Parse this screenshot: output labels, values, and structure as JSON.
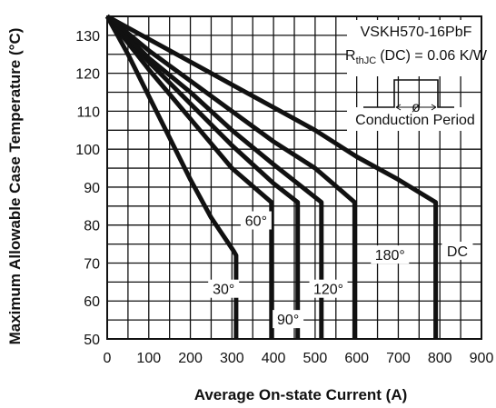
{
  "chart_data": {
    "type": "line",
    "xlabel": "Average On-state Current (A)",
    "ylabel": "Maximum Allowable Case Temperature (°C)",
    "xlim": [
      0,
      900
    ],
    "ylim": [
      50,
      135
    ],
    "x_ticks": [
      0,
      100,
      200,
      300,
      400,
      500,
      600,
      700,
      800,
      900
    ],
    "y_ticks": [
      50,
      60,
      70,
      80,
      90,
      100,
      110,
      120,
      130
    ],
    "grid": true,
    "annotations": {
      "model": "VSKH570-16PbF",
      "rth_prefix": "R",
      "rth_sub": "thJC",
      "rth_suffix": "(DC) = 0.06 K/W",
      "phi": "ø",
      "conduction": "Conduction Period"
    },
    "series": [
      {
        "name": "30°",
        "label": "30°",
        "points": [
          [
            0,
            135
          ],
          [
            50,
            125
          ],
          [
            100,
            114
          ],
          [
            150,
            103
          ],
          [
            200,
            92
          ],
          [
            250,
            82
          ],
          [
            305,
            73
          ],
          [
            310,
            72
          ],
          [
            310,
            50
          ]
        ]
      },
      {
        "name": "60°",
        "label": "60°",
        "points": [
          [
            0,
            135
          ],
          [
            100,
            121
          ],
          [
            200,
            108
          ],
          [
            300,
            95
          ],
          [
            395,
            86
          ],
          [
            395,
            50
          ]
        ]
      },
      {
        "name": "90°",
        "label": "90°",
        "points": [
          [
            0,
            135
          ],
          [
            100,
            123
          ],
          [
            200,
            112
          ],
          [
            300,
            101
          ],
          [
            400,
            91
          ],
          [
            458,
            86
          ],
          [
            458,
            50
          ]
        ]
      },
      {
        "name": "120°",
        "label": "120°",
        "points": [
          [
            0,
            135
          ],
          [
            100,
            124
          ],
          [
            200,
            115
          ],
          [
            300,
            105
          ],
          [
            400,
            96
          ],
          [
            515,
            86
          ],
          [
            515,
            50
          ]
        ]
      },
      {
        "name": "180°",
        "label": "180°",
        "points": [
          [
            0,
            135
          ],
          [
            100,
            126
          ],
          [
            200,
            118
          ],
          [
            300,
            110
          ],
          [
            400,
            102
          ],
          [
            500,
            95
          ],
          [
            595,
            86
          ],
          [
            595,
            50
          ]
        ]
      },
      {
        "name": "DC",
        "label": "DC",
        "points": [
          [
            0,
            135
          ],
          [
            100,
            129
          ],
          [
            200,
            123
          ],
          [
            300,
            117
          ],
          [
            400,
            111
          ],
          [
            500,
            105
          ],
          [
            600,
            98
          ],
          [
            700,
            92
          ],
          [
            790,
            86
          ],
          [
            790,
            50
          ]
        ]
      }
    ]
  }
}
